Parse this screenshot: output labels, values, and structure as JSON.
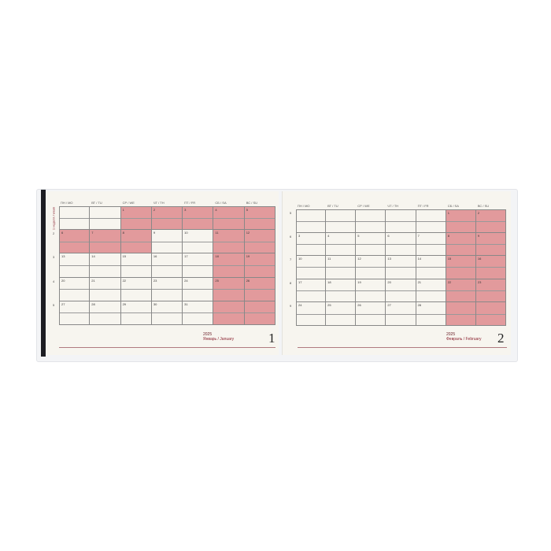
{
  "weekdays": [
    "ПН / MO",
    "ВТ / TU",
    "СР / WE",
    "ЧТ / TH",
    "ПТ / FR",
    "СБ / SA",
    "ВС / SU"
  ],
  "week_label": "1 неделя / week",
  "colors": {
    "shade": "#e29a9c",
    "paper": "#f7f5ef"
  },
  "months": [
    {
      "year": "2025",
      "name": "Январь / January",
      "page": "1",
      "weeks": [
        "1",
        "2",
        "3",
        "4",
        "5"
      ],
      "days": [
        [
          "",
          "",
          "1",
          "2",
          "3",
          "4",
          "5"
        ],
        [
          "6",
          "7",
          "8",
          "9",
          "10",
          "11",
          "12"
        ],
        [
          "13",
          "14",
          "15",
          "16",
          "17",
          "18",
          "19"
        ],
        [
          "20",
          "21",
          "22",
          "23",
          "24",
          "25",
          "26"
        ],
        [
          "27",
          "28",
          "29",
          "30",
          "31",
          "",
          ""
        ]
      ],
      "shaded": [
        [
          0,
          0,
          1,
          1,
          1,
          1,
          1
        ],
        [
          1,
          1,
          1,
          0,
          0,
          1,
          1
        ],
        [
          0,
          0,
          0,
          0,
          0,
          1,
          1
        ],
        [
          0,
          0,
          0,
          0,
          0,
          1,
          1
        ],
        [
          0,
          0,
          0,
          0,
          0,
          1,
          1
        ]
      ]
    },
    {
      "year": "2025",
      "name": "Февраль / February",
      "page": "2",
      "weeks": [
        "5",
        "6",
        "7",
        "8",
        "9"
      ],
      "days": [
        [
          "",
          "",
          "",
          "",
          "",
          "1",
          "2"
        ],
        [
          "3",
          "4",
          "5",
          "6",
          "7",
          "8",
          "9"
        ],
        [
          "10",
          "11",
          "12",
          "13",
          "14",
          "15",
          "16"
        ],
        [
          "17",
          "18",
          "19",
          "20",
          "21",
          "22",
          "23"
        ],
        [
          "24",
          "25",
          "26",
          "27",
          "28",
          "",
          ""
        ]
      ],
      "shaded": [
        [
          0,
          0,
          0,
          0,
          0,
          1,
          1
        ],
        [
          0,
          0,
          0,
          0,
          0,
          1,
          1
        ],
        [
          0,
          0,
          0,
          0,
          0,
          1,
          1
        ],
        [
          0,
          0,
          0,
          0,
          0,
          1,
          1
        ],
        [
          0,
          0,
          0,
          0,
          0,
          1,
          1
        ]
      ]
    }
  ]
}
